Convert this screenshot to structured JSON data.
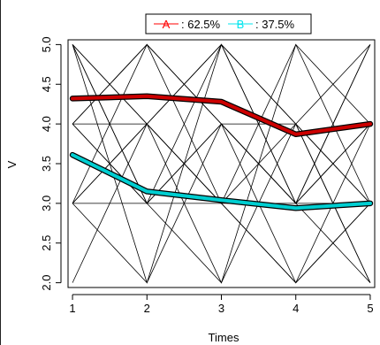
{
  "chart_data": {
    "type": "line",
    "xlabel": "Times",
    "ylabel": "V",
    "x": [
      1,
      2,
      3,
      4,
      5
    ],
    "xlim": [
      0.94,
      5.06
    ],
    "ylim": [
      1.94,
      5.06
    ],
    "xticks": [
      "1",
      "2",
      "3",
      "4",
      "5"
    ],
    "yticks": [
      "2.0",
      "2.5",
      "3.0",
      "3.5",
      "4.0",
      "4.5",
      "5.0"
    ],
    "grid": false,
    "legend": {
      "position": "top",
      "entries": [
        {
          "symbol": "A",
          "text": ": 62.5%",
          "color": "#ff0000"
        },
        {
          "symbol": "B",
          "text": ": 37.5%",
          "color": "#00e5ee"
        }
      ]
    },
    "individual_trajectories": [
      [
        5,
        4,
        3,
        2,
        3
      ],
      [
        5,
        3,
        5,
        4,
        2
      ],
      [
        4,
        5,
        3,
        4,
        5
      ],
      [
        3,
        5,
        4,
        2,
        4
      ],
      [
        5,
        4,
        5,
        3,
        4
      ],
      [
        4,
        5,
        4,
        3,
        5
      ],
      [
        3,
        2,
        5,
        4,
        3
      ],
      [
        2,
        4,
        3,
        5,
        3
      ],
      [
        4,
        3,
        4,
        3,
        2
      ],
      [
        3,
        4,
        2,
        5,
        4
      ],
      [
        5,
        2,
        4,
        3,
        5
      ],
      [
        3,
        3,
        2,
        4,
        3
      ],
      [
        4,
        4,
        3,
        2,
        3
      ],
      [
        5,
        3,
        4,
        4,
        2
      ],
      [
        4,
        3,
        3,
        3,
        3
      ],
      [
        3,
        4,
        5,
        3,
        4
      ]
    ],
    "series": [
      {
        "name": "A",
        "values": [
          4.32,
          4.35,
          4.28,
          3.87,
          4.0
        ],
        "color": "#cc0000"
      },
      {
        "name": "B",
        "values": [
          3.61,
          3.15,
          3.04,
          2.94,
          3.0
        ],
        "color": "#00ced1"
      }
    ]
  }
}
